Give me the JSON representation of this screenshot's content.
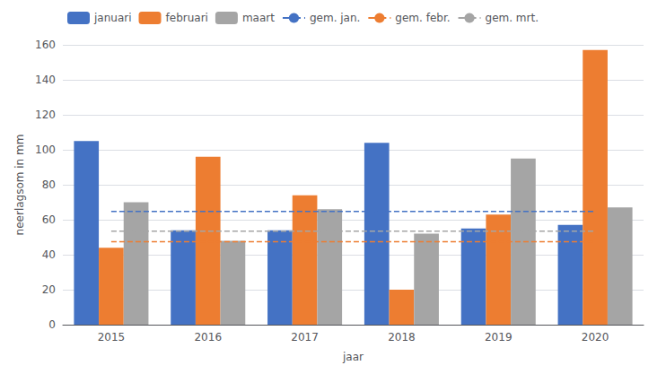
{
  "chart_data": {
    "type": "bar",
    "categories": [
      "2015",
      "2016",
      "2017",
      "2018",
      "2019",
      "2020"
    ],
    "series": [
      {
        "name": "januari",
        "type": "bar",
        "color": "#4472C4",
        "values": [
          105,
          54,
          54,
          104,
          55,
          57
        ]
      },
      {
        "name": "februari",
        "type": "bar",
        "color": "#ED7D31",
        "values": [
          44,
          96,
          74,
          20,
          63,
          157
        ]
      },
      {
        "name": "maart",
        "type": "bar",
        "color": "#A5A5A5",
        "values": [
          70,
          48,
          66,
          52,
          95,
          67
        ]
      },
      {
        "name": "gem. jan.",
        "type": "line",
        "line_style": "dashed",
        "color": "#4472C4",
        "values": [
          64.8,
          64.8,
          64.8,
          64.8,
          64.8,
          64.8
        ]
      },
      {
        "name": "gem. febr.",
        "type": "line",
        "line_style": "dashed",
        "color": "#ED7D31",
        "values": [
          47.5,
          47.5,
          47.5,
          47.5,
          47.5,
          47.5
        ]
      },
      {
        "name": "gem. mrt.",
        "type": "line",
        "line_style": "dashed",
        "color": "#A5A5A5",
        "values": [
          53.5,
          53.5,
          53.5,
          53.5,
          53.5,
          53.5
        ]
      }
    ],
    "xlabel": "jaar",
    "ylabel": "neerlagsom in mm",
    "ylim": [
      0,
      160
    ],
    "yticks": [
      0,
      20,
      40,
      60,
      80,
      100,
      120,
      140,
      160
    ],
    "grid": true,
    "legend": "upper left"
  }
}
